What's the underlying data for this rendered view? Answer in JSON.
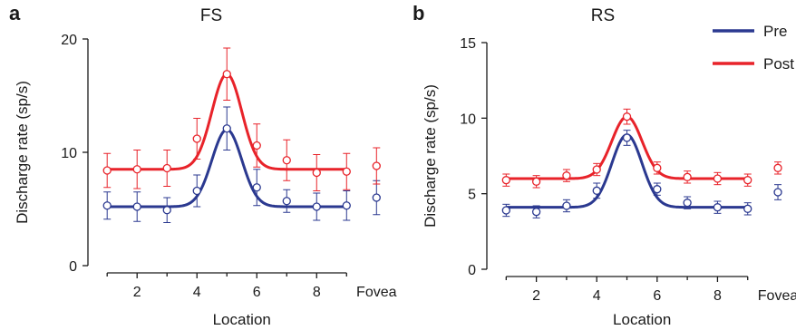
{
  "chart_data": [
    {
      "panel_label": "a",
      "type": "scatter",
      "title": "FS",
      "xlabel": "Location",
      "ylabel": "Discharge rate (sp/s)",
      "ylim": [
        0,
        20
      ],
      "xlim": [
        0.6,
        10.9
      ],
      "yticks": [
        0,
        10,
        20
      ],
      "xticks": [
        2,
        4,
        6,
        8
      ],
      "extra_xtick_label": "Fovea",
      "grid": false,
      "series": [
        {
          "name": "Pre",
          "color": "#2b3990",
          "x": [
            1,
            2,
            3,
            4,
            5,
            6,
            7,
            8,
            9,
            10
          ],
          "values": [
            5.3,
            5.2,
            4.9,
            6.6,
            12.1,
            6.9,
            5.7,
            5.2,
            5.3,
            6.0
          ],
          "errors": [
            1.2,
            1.3,
            1.1,
            1.4,
            1.9,
            1.6,
            1.0,
            1.2,
            1.3,
            1.5
          ],
          "fit": {
            "baseline": 5.2,
            "amplitude": 6.8,
            "center": 5.0,
            "sigma": 0.5
          }
        },
        {
          "name": "Post",
          "color": "#e8232a",
          "x": [
            1,
            2,
            3,
            4,
            5,
            6,
            7,
            8,
            9,
            10
          ],
          "values": [
            8.4,
            8.5,
            8.6,
            11.2,
            16.9,
            10.6,
            9.3,
            8.2,
            8.3,
            8.8
          ],
          "errors": [
            1.5,
            1.7,
            1.6,
            1.8,
            2.3,
            1.9,
            1.8,
            1.6,
            1.6,
            1.6
          ],
          "fit": {
            "baseline": 8.5,
            "amplitude": 8.4,
            "center": 5.0,
            "sigma": 0.5
          }
        }
      ]
    },
    {
      "panel_label": "b",
      "type": "scatter",
      "title": "RS",
      "xlabel": "Location",
      "ylabel": "Discharge rate (sp/s)",
      "ylim": [
        0,
        15
      ],
      "xlim": [
        0.6,
        10.9
      ],
      "yticks": [
        0,
        5,
        10,
        15
      ],
      "xticks": [
        2,
        4,
        6,
        8
      ],
      "extra_xtick_label": "Fovea",
      "grid": false,
      "legend": "top-right",
      "series": [
        {
          "name": "Pre",
          "color": "#2b3990",
          "x": [
            1,
            2,
            3,
            4,
            5,
            6,
            7,
            8,
            9,
            10
          ],
          "values": [
            3.9,
            3.8,
            4.2,
            5.2,
            8.7,
            5.3,
            4.4,
            4.1,
            4.0,
            5.1
          ],
          "errors": [
            0.4,
            0.4,
            0.4,
            0.5,
            0.5,
            0.4,
            0.4,
            0.4,
            0.4,
            0.5
          ],
          "fit": {
            "baseline": 4.1,
            "amplitude": 4.8,
            "center": 5.0,
            "sigma": 0.5
          }
        },
        {
          "name": "Post",
          "color": "#e8232a",
          "x": [
            1,
            2,
            3,
            4,
            5,
            6,
            7,
            8,
            9,
            10
          ],
          "values": [
            5.9,
            5.8,
            6.2,
            6.6,
            10.1,
            6.7,
            6.1,
            6.0,
            5.9,
            6.7
          ],
          "errors": [
            0.4,
            0.4,
            0.4,
            0.4,
            0.5,
            0.4,
            0.4,
            0.4,
            0.4,
            0.4
          ],
          "fit": {
            "baseline": 6.0,
            "amplitude": 4.1,
            "center": 5.0,
            "sigma": 0.5
          }
        }
      ]
    }
  ]
}
